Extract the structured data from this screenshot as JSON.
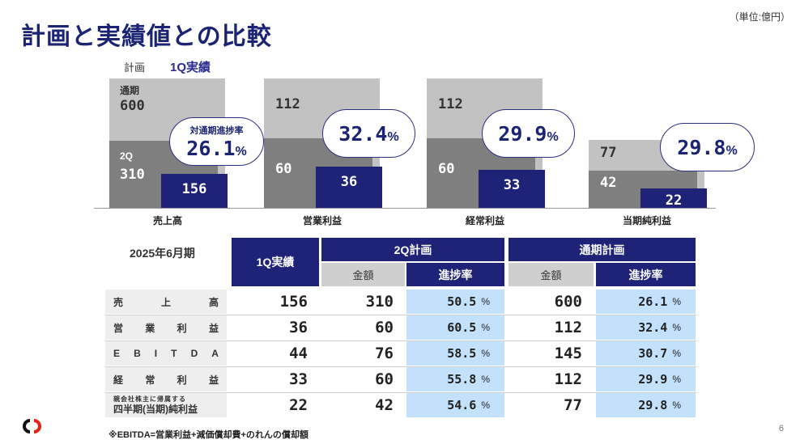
{
  "header": {
    "title": "計画と実績値との比較",
    "unit": "（単位:億円）"
  },
  "legend": {
    "plan": "計画",
    "actual": "1Q実績"
  },
  "chart_data": {
    "type": "bar",
    "categories": [
      "売上高",
      "営業利益",
      "経常利益",
      "当期純利益"
    ],
    "series": [
      {
        "name": "通期",
        "values": [
          600,
          112,
          112,
          77
        ]
      },
      {
        "name": "2Q",
        "values": [
          310,
          60,
          60,
          42
        ]
      },
      {
        "name": "1Q実績",
        "values": [
          156,
          36,
          33,
          22
        ]
      }
    ],
    "progress_full_year": [
      "26.1",
      "32.4",
      "29.9",
      "29.8"
    ],
    "labels": {
      "full": "通期",
      "half": "2Q",
      "bubble_caption": "対通期進捗率",
      "pct": "%"
    }
  },
  "table": {
    "period": "2025年6月期",
    "col_actual": "1Q実績",
    "group_2q": "2Q計画",
    "group_full": "通期計画",
    "sub_amount": "金額",
    "sub_progress": "進捗率",
    "pct": "%",
    "rows": [
      {
        "label_chars": [
          "売",
          "上",
          "高"
        ],
        "actual": "156",
        "plan2q": "310",
        "prog2q": "50.5",
        "planfull": "600",
        "progfull": "26.1"
      },
      {
        "label_chars": [
          "営",
          "業",
          "利",
          "益"
        ],
        "actual": "36",
        "plan2q": "60",
        "prog2q": "60.5",
        "planfull": "112",
        "progfull": "32.4"
      },
      {
        "label_chars": [
          "E",
          "B",
          "I",
          "T",
          "D",
          "A"
        ],
        "actual": "44",
        "plan2q": "76",
        "prog2q": "58.5",
        "planfull": "145",
        "progfull": "30.7"
      },
      {
        "label_chars": [
          "経",
          "常",
          "利",
          "益"
        ],
        "actual": "33",
        "plan2q": "60",
        "prog2q": "55.8",
        "planfull": "112",
        "progfull": "29.9"
      },
      {
        "label_small": "親会社株主に帰属する",
        "label_main": "四半期(当期)純利益",
        "actual": "22",
        "plan2q": "42",
        "prog2q": "54.6",
        "planfull": "77",
        "progfull": "29.8"
      }
    ]
  },
  "footnote": "※EBITDA=営業利益+減価償却費+のれんの償却額",
  "page_number": "6"
}
